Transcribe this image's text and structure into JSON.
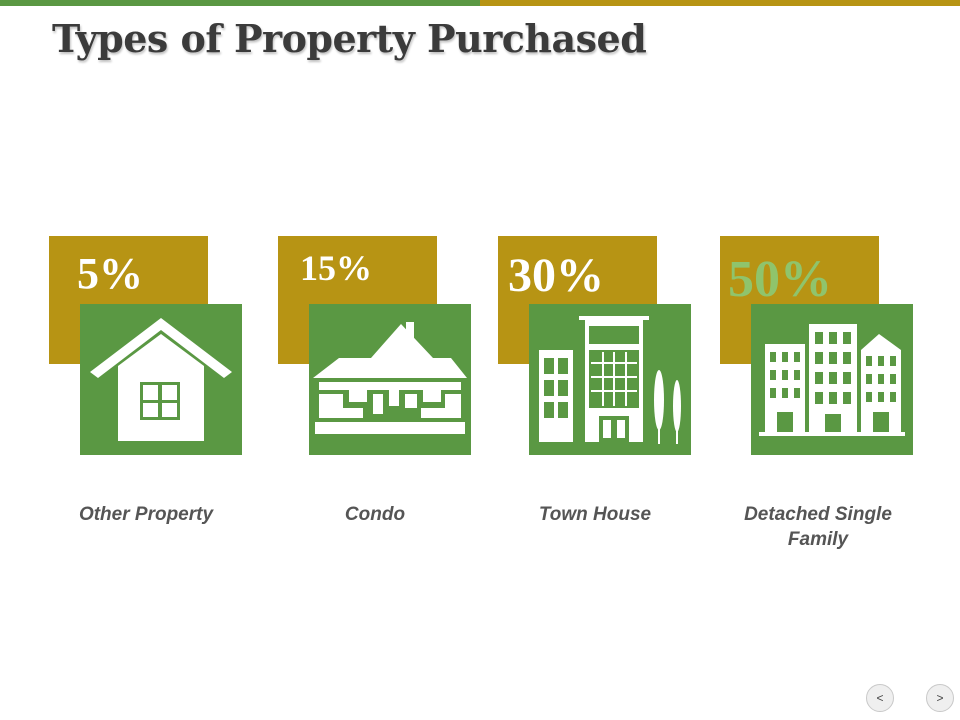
{
  "title": "Types of Property Purchased",
  "colors": {
    "green": "#5a9843",
    "gold": "#b79414",
    "title": "#3b3b3b",
    "label": "#555555"
  },
  "cards": [
    {
      "percent": "5%",
      "label": "Other Property",
      "icon": "house-icon"
    },
    {
      "percent": "15%",
      "label": "Condo",
      "icon": "cottage-icon"
    },
    {
      "percent": "30%",
      "label": "Town House",
      "icon": "townhouse-building-icon"
    },
    {
      "percent": "50%",
      "label": "Detached Single Family",
      "icon": "city-buildings-icon"
    }
  ],
  "nav": {
    "prev": "<",
    "next": ">"
  }
}
